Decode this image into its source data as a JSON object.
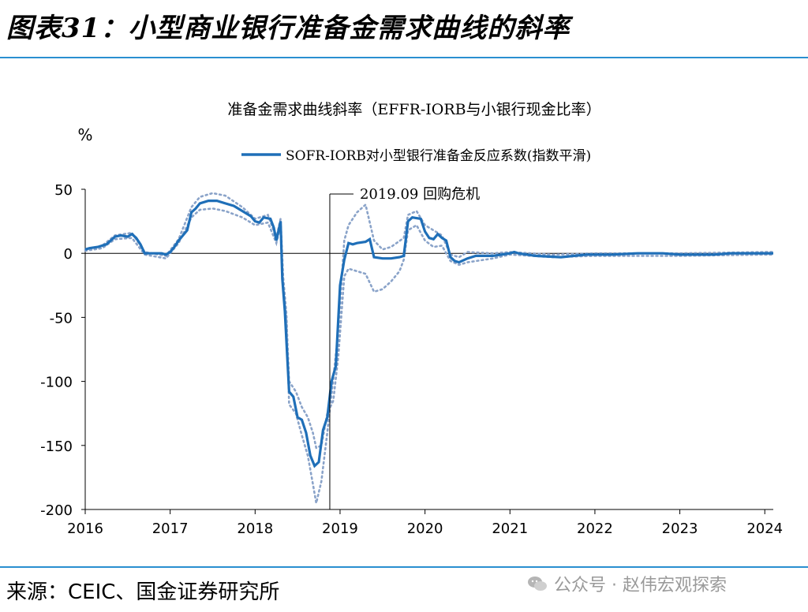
{
  "header": {
    "title": "图表31：小型商业银行准备金需求曲线的斜率"
  },
  "footer": {
    "source": "来源：CEIC、国金证券研究所",
    "watermark": "公众号 · 赵伟宏观探索"
  },
  "colors": {
    "accent_rule": "#2a8fd0",
    "series_main": "#1f6fb8",
    "series_band": "#8aa3c9"
  },
  "chart_data": {
    "type": "line",
    "title": "准备金需求曲线斜率（EFFR-IORB与小银行现金比率）",
    "ylabel": "%",
    "xlabel": "",
    "ylim": [
      -200,
      50
    ],
    "xlim": [
      2016.0,
      2024.1
    ],
    "x_ticks": [
      "2016",
      "2017",
      "2018",
      "2019",
      "2020",
      "2021",
      "2022",
      "2023",
      "2024"
    ],
    "y_ticks": [
      "50",
      "0",
      "-50",
      "-100",
      "-150",
      "-200"
    ],
    "grid": false,
    "legend": {
      "position": "top-right",
      "entries": [
        "SOFR-IORB对小型银行准备金反应系数(指数平滑)"
      ]
    },
    "annotation": {
      "label": "2019.09 回购危机",
      "x": 2019.0
    },
    "series": [
      {
        "name": "SOFR-IORB对小型银行准备金反应系数(指数平滑)",
        "style": "solid",
        "points": [
          [
            2016.0,
            3
          ],
          [
            2016.05,
            4
          ],
          [
            2016.15,
            5
          ],
          [
            2016.25,
            7
          ],
          [
            2016.3,
            10
          ],
          [
            2016.35,
            13
          ],
          [
            2016.42,
            14
          ],
          [
            2016.5,
            13
          ],
          [
            2016.55,
            15
          ],
          [
            2016.6,
            12
          ],
          [
            2016.65,
            7
          ],
          [
            2016.7,
            0
          ],
          [
            2016.8,
            0
          ],
          [
            2016.9,
            0
          ],
          [
            2016.95,
            -1
          ],
          [
            2017.0,
            1
          ],
          [
            2017.05,
            5
          ],
          [
            2017.1,
            10
          ],
          [
            2017.2,
            18
          ],
          [
            2017.25,
            32
          ],
          [
            2017.3,
            35
          ],
          [
            2017.35,
            39
          ],
          [
            2017.45,
            41
          ],
          [
            2017.55,
            41
          ],
          [
            2017.65,
            39
          ],
          [
            2017.75,
            37
          ],
          [
            2017.85,
            33
          ],
          [
            2017.95,
            29
          ],
          [
            2018.0,
            25
          ],
          [
            2018.05,
            24
          ],
          [
            2018.1,
            28
          ],
          [
            2018.18,
            27
          ],
          [
            2018.22,
            20
          ],
          [
            2018.25,
            10
          ],
          [
            2018.3,
            25
          ],
          [
            2018.32,
            -20
          ],
          [
            2018.35,
            -45
          ],
          [
            2018.4,
            -108
          ],
          [
            2018.45,
            -112
          ],
          [
            2018.5,
            -128
          ],
          [
            2018.55,
            -130
          ],
          [
            2018.6,
            -140
          ],
          [
            2018.65,
            -158
          ],
          [
            2018.7,
            -166
          ],
          [
            2018.75,
            -163
          ],
          [
            2018.8,
            -138
          ],
          [
            2018.85,
            -128
          ],
          [
            2018.9,
            -100
          ],
          [
            2018.95,
            -88
          ],
          [
            2019.0,
            -25
          ],
          [
            2019.05,
            -5
          ],
          [
            2019.1,
            8
          ],
          [
            2019.15,
            7
          ],
          [
            2019.2,
            8
          ],
          [
            2019.3,
            9
          ],
          [
            2019.35,
            11
          ],
          [
            2019.4,
            -3
          ],
          [
            2019.5,
            -4
          ],
          [
            2019.6,
            -4
          ],
          [
            2019.7,
            -3
          ],
          [
            2019.75,
            -2
          ],
          [
            2019.8,
            25
          ],
          [
            2019.85,
            28
          ],
          [
            2019.95,
            27
          ],
          [
            2020.0,
            17
          ],
          [
            2020.05,
            12
          ],
          [
            2020.1,
            11
          ],
          [
            2020.15,
            15
          ],
          [
            2020.2,
            12
          ],
          [
            2020.25,
            10
          ],
          [
            2020.3,
            -3
          ],
          [
            2020.35,
            -6
          ],
          [
            2020.4,
            -7
          ],
          [
            2020.5,
            -4
          ],
          [
            2020.6,
            -2
          ],
          [
            2020.8,
            -2
          ],
          [
            2021.0,
            0
          ],
          [
            2021.05,
            1
          ],
          [
            2021.1,
            0
          ],
          [
            2021.3,
            -2
          ],
          [
            2021.6,
            -3
          ],
          [
            2021.9,
            -1
          ],
          [
            2022.2,
            -1
          ],
          [
            2022.5,
            0
          ],
          [
            2022.8,
            0
          ],
          [
            2023.0,
            -1
          ],
          [
            2023.2,
            -1
          ],
          [
            2023.4,
            -1
          ],
          [
            2023.6,
            0
          ],
          [
            2023.9,
            0
          ],
          [
            2024.0,
            0
          ],
          [
            2024.1,
            0
          ]
        ]
      },
      {
        "name": "",
        "style": "dotted",
        "points": [
          [
            2016.0,
            3
          ],
          [
            2016.2,
            6
          ],
          [
            2016.35,
            14
          ],
          [
            2016.55,
            16
          ],
          [
            2016.7,
            1
          ],
          [
            2016.95,
            -2
          ],
          [
            2017.1,
            11
          ],
          [
            2017.25,
            36
          ],
          [
            2017.35,
            44
          ],
          [
            2017.5,
            47
          ],
          [
            2017.65,
            45
          ],
          [
            2017.85,
            36
          ],
          [
            2018.0,
            27
          ],
          [
            2018.15,
            30
          ],
          [
            2018.25,
            12
          ],
          [
            2018.3,
            27
          ],
          [
            2018.33,
            -18
          ],
          [
            2018.37,
            -48
          ],
          [
            2018.4,
            -118
          ],
          [
            2018.48,
            -125
          ],
          [
            2018.55,
            -142
          ],
          [
            2018.62,
            -158
          ],
          [
            2018.68,
            -180
          ],
          [
            2018.72,
            -195
          ],
          [
            2018.78,
            -178
          ],
          [
            2018.85,
            -140
          ],
          [
            2018.92,
            -98
          ],
          [
            2018.98,
            -60
          ],
          [
            2019.05,
            10
          ],
          [
            2019.1,
            22
          ],
          [
            2019.2,
            32
          ],
          [
            2019.3,
            38
          ],
          [
            2019.4,
            10
          ],
          [
            2019.5,
            3
          ],
          [
            2019.6,
            5
          ],
          [
            2019.75,
            12
          ],
          [
            2019.8,
            30
          ],
          [
            2019.9,
            33
          ],
          [
            2020.0,
            22
          ],
          [
            2020.1,
            18
          ],
          [
            2020.2,
            14
          ],
          [
            2020.3,
            -1
          ],
          [
            2020.4,
            -3
          ],
          [
            2020.5,
            1
          ],
          [
            2020.8,
            0
          ],
          [
            2021.0,
            1
          ],
          [
            2021.5,
            -1
          ],
          [
            2022.0,
            0
          ],
          [
            2023.0,
            0
          ],
          [
            2024.0,
            1
          ],
          [
            2024.1,
            1
          ]
        ]
      },
      {
        "name": "",
        "style": "dotted",
        "points": [
          [
            2016.0,
            2
          ],
          [
            2016.2,
            4
          ],
          [
            2016.35,
            11
          ],
          [
            2016.55,
            12
          ],
          [
            2016.7,
            -1
          ],
          [
            2016.95,
            -4
          ],
          [
            2017.1,
            8
          ],
          [
            2017.25,
            28
          ],
          [
            2017.35,
            34
          ],
          [
            2017.5,
            35
          ],
          [
            2017.65,
            33
          ],
          [
            2017.85,
            28
          ],
          [
            2018.0,
            22
          ],
          [
            2018.15,
            24
          ],
          [
            2018.25,
            8
          ],
          [
            2018.3,
            22
          ],
          [
            2018.33,
            -25
          ],
          [
            2018.37,
            -52
          ],
          [
            2018.4,
            -100
          ],
          [
            2018.48,
            -108
          ],
          [
            2018.55,
            -120
          ],
          [
            2018.62,
            -128
          ],
          [
            2018.68,
            -140
          ],
          [
            2018.72,
            -152
          ],
          [
            2018.78,
            -150
          ],
          [
            2018.85,
            -125
          ],
          [
            2018.92,
            -115
          ],
          [
            2018.98,
            -80
          ],
          [
            2019.05,
            -18
          ],
          [
            2019.1,
            -12
          ],
          [
            2019.2,
            -14
          ],
          [
            2019.3,
            -16
          ],
          [
            2019.4,
            -30
          ],
          [
            2019.5,
            -28
          ],
          [
            2019.6,
            -22
          ],
          [
            2019.7,
            -14
          ],
          [
            2019.75,
            -5
          ],
          [
            2019.8,
            18
          ],
          [
            2019.9,
            22
          ],
          [
            2020.0,
            10
          ],
          [
            2020.1,
            5
          ],
          [
            2020.2,
            6
          ],
          [
            2020.3,
            -6
          ],
          [
            2020.4,
            -9
          ],
          [
            2020.5,
            -7
          ],
          [
            2020.8,
            -4
          ],
          [
            2021.0,
            -1
          ],
          [
            2021.5,
            -3
          ],
          [
            2022.0,
            -2
          ],
          [
            2023.0,
            -2
          ],
          [
            2024.0,
            -1
          ],
          [
            2024.1,
            -1
          ]
        ]
      }
    ]
  }
}
